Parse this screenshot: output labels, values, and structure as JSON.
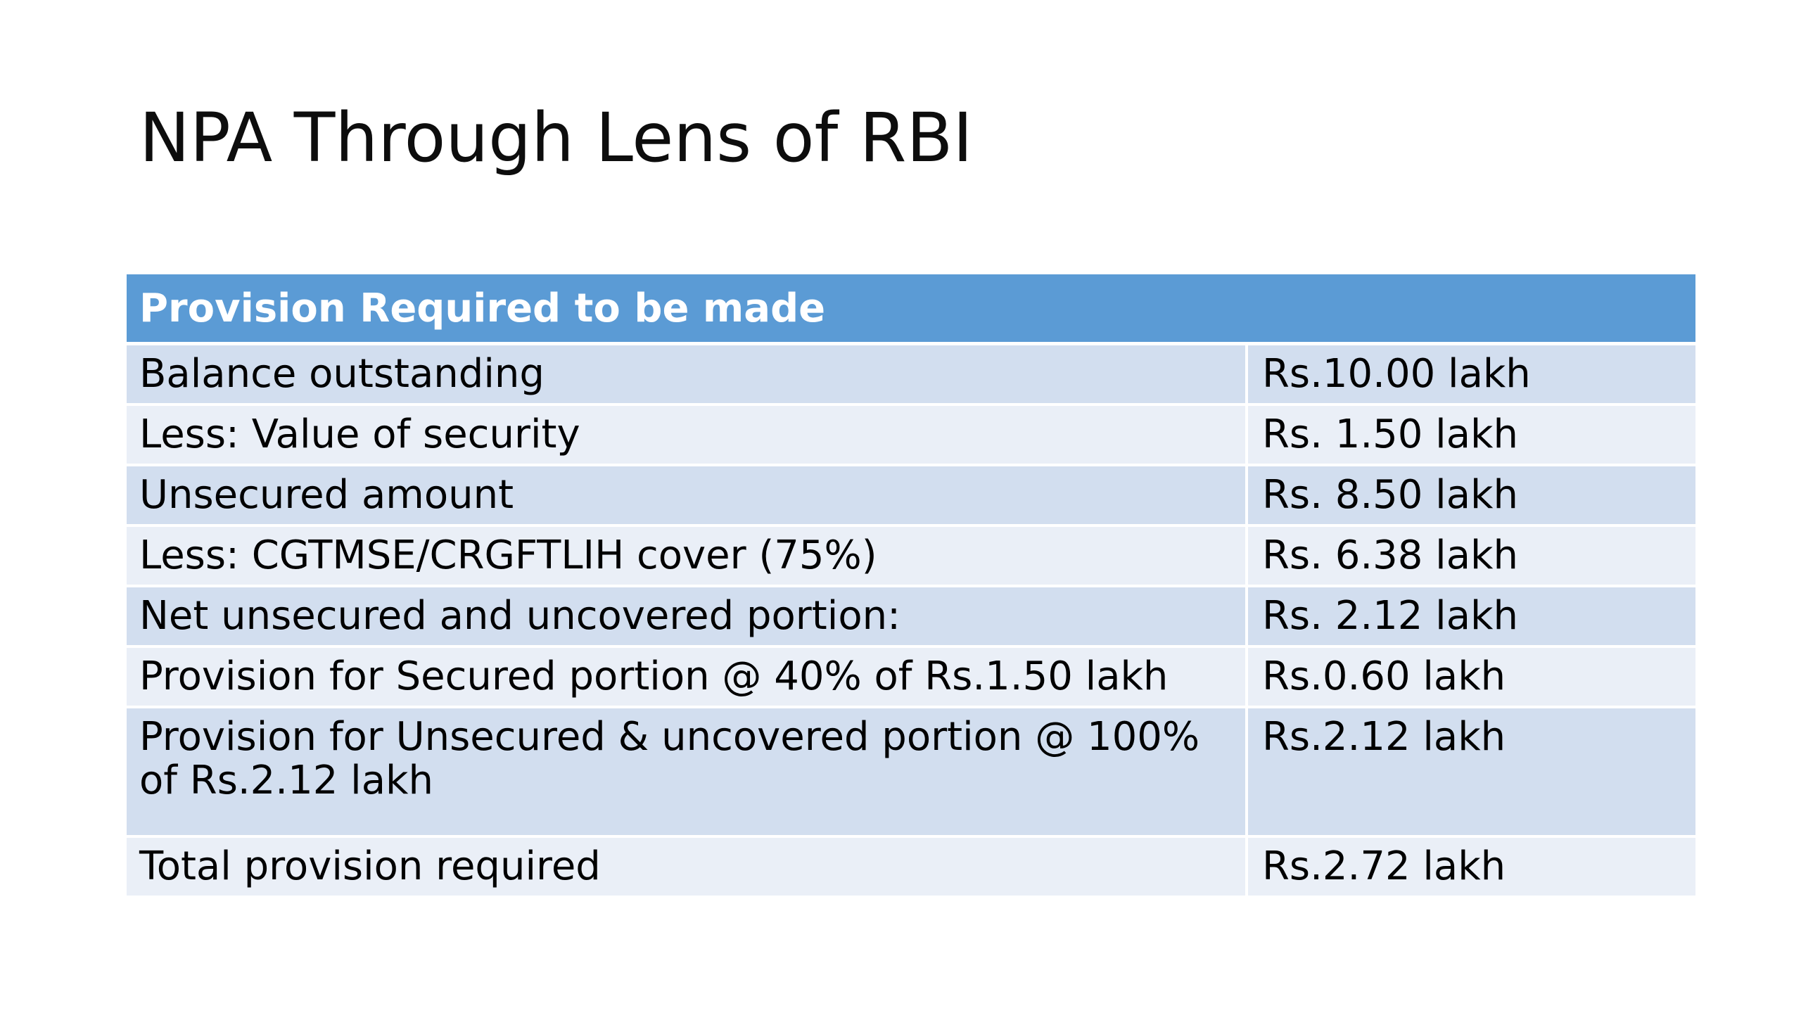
{
  "slide": {
    "title": "NPA Through Lens of RBI"
  },
  "table": {
    "header": "Provision Required to be made",
    "rows": [
      {
        "label": "Balance outstanding",
        "amount": "Rs.10.00 lakh"
      },
      {
        "label": "Less: Value of security",
        "amount": "Rs. 1.50 lakh"
      },
      {
        "label": "Unsecured amount",
        "amount": "Rs. 8.50 lakh"
      },
      {
        "label": "Less: CGTMSE/CRGFTLIH cover (75%)",
        "amount": "Rs. 6.38 lakh"
      },
      {
        "label": "Net unsecured and uncovered portion:",
        "amount": "Rs. 2.12 lakh"
      },
      {
        "label": "Provision for Secured portion @ 40% of Rs.1.50 lakh",
        "amount": "Rs.0.60 lakh"
      },
      {
        "label": "Provision for Unsecured & uncovered portion @ 100% of Rs.2.12 lakh",
        "amount": "Rs.2.12 lakh"
      },
      {
        "label": "Total provision required",
        "amount": "Rs.2.72 lakh"
      }
    ]
  },
  "colors": {
    "header_bg": "#5b9bd5",
    "row_band_dark": "#d2deef",
    "row_band_light": "#eaeff7",
    "title_text": "#0d0d0d"
  }
}
